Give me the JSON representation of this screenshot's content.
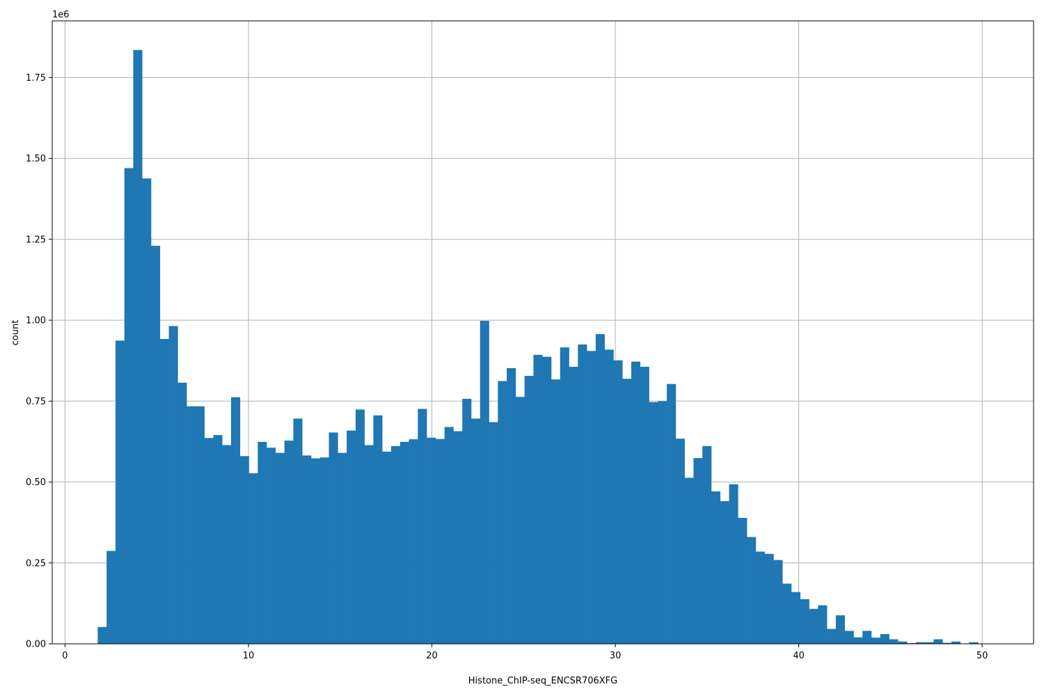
{
  "chart_data": {
    "type": "bar",
    "xlabel": "Histone_ChIP-seq_ENCSR706XFG",
    "ylabel": "count",
    "y_offset_text": "1e6",
    "xlim": [
      -0.7,
      52.8
    ],
    "ylim": [
      0,
      1925000
    ],
    "grid": true,
    "bar_color": "#1f77b4",
    "x_ticks": [
      0,
      10,
      20,
      30,
      40,
      50
    ],
    "x_tick_labels": [
      "0",
      "10",
      "20",
      "30",
      "40",
      "50"
    ],
    "y_ticks": [
      0,
      250000,
      500000,
      750000,
      1000000,
      1250000,
      1500000,
      1750000
    ],
    "y_tick_labels": [
      "0.00",
      "0.25",
      "0.50",
      "0.75",
      "1.00",
      "1.25",
      "1.50",
      "1.75"
    ],
    "bin_start": 1.78,
    "bin_width": 0.4848,
    "values": [
      52000,
      287000,
      937000,
      1470000,
      1835000,
      1438000,
      1230000,
      942000,
      982000,
      807000,
      734000,
      734000,
      636000,
      645000,
      614000,
      762000,
      580000,
      527000,
      624000,
      606000,
      590000,
      628000,
      696000,
      582000,
      573000,
      576000,
      653000,
      590000,
      659000,
      724000,
      614000,
      706000,
      594000,
      611000,
      624000,
      632000,
      726000,
      637000,
      633000,
      670000,
      657000,
      757000,
      696000,
      998000,
      685000,
      812000,
      852000,
      763000,
      828000,
      893000,
      887000,
      817000,
      916000,
      856000,
      925000,
      905000,
      957000,
      909000,
      876000,
      819000,
      872000,
      856000,
      747000,
      750000,
      803000,
      634000,
      513000,
      574000,
      611000,
      471000,
      441000,
      493000,
      389000,
      330000,
      285000,
      278000,
      259000,
      186000,
      160000,
      138000,
      108000,
      119000,
      46000,
      88000,
      40000,
      20000,
      40000,
      19000,
      30000,
      14000,
      7000,
      2000,
      5000,
      5000,
      14000,
      3000,
      7000,
      0,
      5000
    ]
  }
}
